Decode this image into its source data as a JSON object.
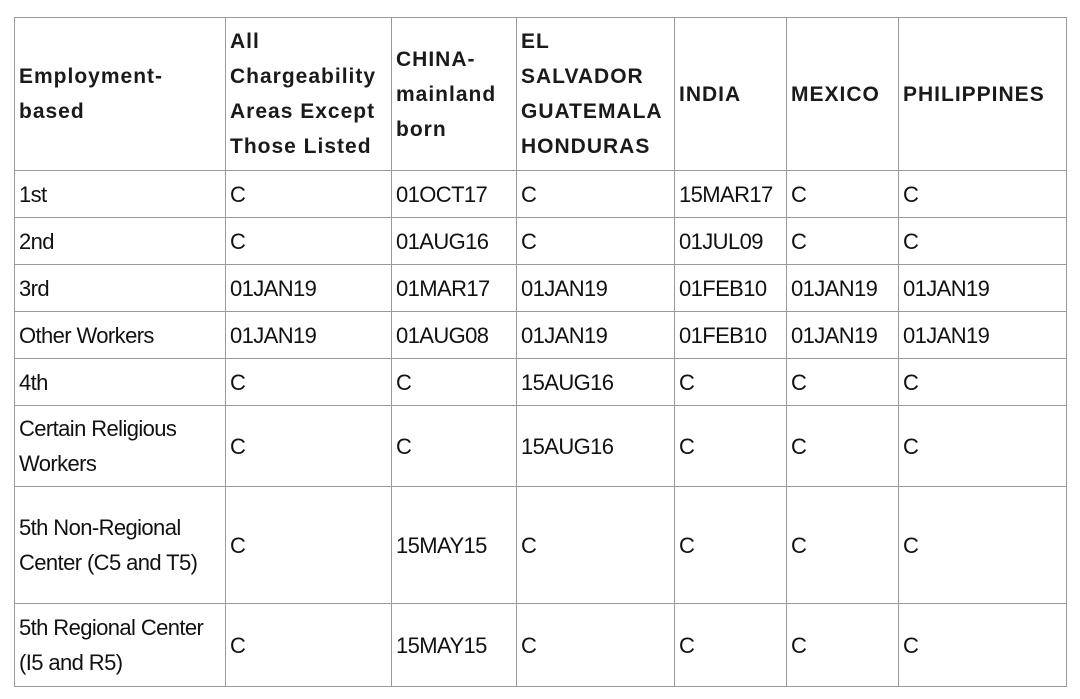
{
  "table": {
    "headers": [
      "Employment-based",
      "All Chargeability Areas Except Those Listed",
      "CHINA-mainland born",
      "EL SALVADOR GUATEMALA HONDURAS",
      "INDIA",
      "MEXICO",
      "PHILIPPINES"
    ],
    "rows": [
      [
        "1st",
        "C",
        "01OCT17",
        "C",
        "15MAR17",
        "C",
        "C"
      ],
      [
        "2nd",
        "C",
        "01AUG16",
        "C",
        "01JUL09",
        "C",
        "C"
      ],
      [
        "3rd",
        "01JAN19",
        "01MAR17",
        "01JAN19",
        "01FEB10",
        "01JAN19",
        "01JAN19"
      ],
      [
        "Other Workers",
        "01JAN19",
        "01AUG08",
        "01JAN19",
        "01FEB10",
        "01JAN19",
        "01JAN19"
      ],
      [
        "4th",
        "C",
        "C",
        "15AUG16",
        "C",
        "C",
        "C"
      ],
      [
        "Certain Religious Workers",
        "C",
        "C",
        "15AUG16",
        "C",
        "C",
        "C"
      ],
      [
        "5th Non-Regional Center (C5 and T5)",
        "C",
        "15MAY15",
        "C",
        "C",
        "C",
        "C"
      ],
      [
        "5th Regional Center (I5 and R5)",
        "C",
        "15MAY15",
        "C",
        "C",
        "C",
        "C"
      ]
    ]
  }
}
